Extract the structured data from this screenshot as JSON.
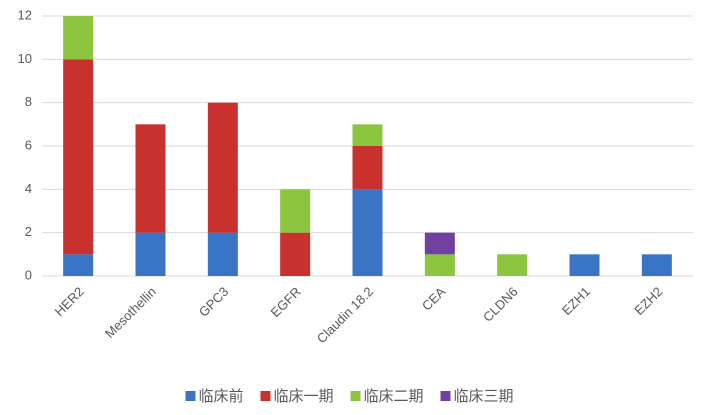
{
  "chart_data": {
    "type": "stacked_bar",
    "categories": [
      "HER2",
      "Mesothellin",
      "GPC3",
      "EGFR",
      "Claudin 18.2",
      "CEA",
      "CLDN6",
      "EZH1",
      "EZH2"
    ],
    "series": [
      {
        "name": "临床前",
        "color": "#3a74c4",
        "values": [
          1,
          2,
          2,
          0,
          4,
          0,
          0,
          1,
          1
        ]
      },
      {
        "name": "临床一期",
        "color": "#c8312d",
        "values": [
          9,
          5,
          6,
          2,
          2,
          0,
          0,
          0,
          0
        ]
      },
      {
        "name": "临床二期",
        "color": "#8cc540",
        "values": [
          2,
          0,
          0,
          2,
          1,
          1,
          1,
          0,
          0
        ]
      },
      {
        "name": "临床三期",
        "color": "#7140a0",
        "values": [
          0,
          0,
          0,
          0,
          0,
          1,
          0,
          0,
          0
        ]
      }
    ],
    "ylim": [
      0,
      12
    ],
    "yticks": [
      0,
      2,
      4,
      6,
      8,
      10,
      12
    ],
    "grid": true,
    "legend": "bottom"
  }
}
